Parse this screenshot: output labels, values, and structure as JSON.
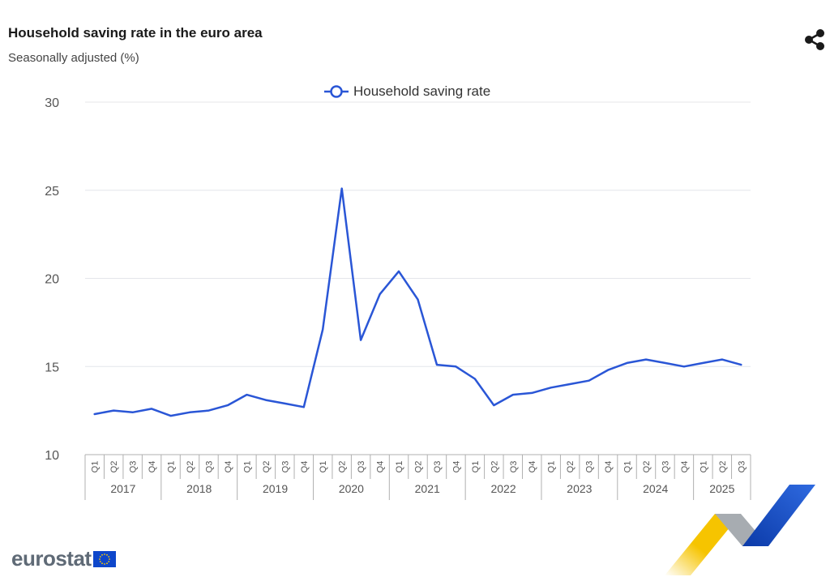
{
  "header": {
    "title": "Household saving rate in the euro area",
    "subtitle": "Seasonally adjusted (%)"
  },
  "toolbar": {
    "share_icon": "share-icon"
  },
  "legend": {
    "label": "Household saving rate",
    "marker_icon": "circle-marker-icon"
  },
  "brand": {
    "logo_text": "eurostat",
    "flag_icon": "eu-flag-icon"
  },
  "colors": {
    "series": "#2a56d6",
    "grid": "#e4e6ea",
    "axis": "#b0b0b0",
    "eu_blue": "#0e47cb",
    "eu_yellow": "#ffcc00",
    "ribbon_yellow": "#f6c400",
    "ribbon_grey": "#9ea3a8",
    "ribbon_blue": "#1a4fc4"
  },
  "chart_data": {
    "type": "line",
    "title": "Household saving rate in the euro area",
    "subtitle": "Seasonally adjusted (%)",
    "xlabel": "",
    "ylabel": "",
    "ylim": [
      10,
      30
    ],
    "yticks": [
      10,
      15,
      20,
      25,
      30
    ],
    "grid": true,
    "legend_position": "top-center",
    "quarter_labels": [
      "Q1",
      "Q2",
      "Q3",
      "Q4",
      "Q1",
      "Q2",
      "Q3",
      "Q4",
      "Q1",
      "Q2",
      "Q3",
      "Q4",
      "Q1",
      "Q2",
      "Q3",
      "Q4",
      "Q1",
      "Q2",
      "Q3",
      "Q4",
      "Q1",
      "Q2",
      "Q3",
      "Q4",
      "Q1",
      "Q2",
      "Q3",
      "Q4",
      "Q1",
      "Q2",
      "Q3",
      "Q4",
      "Q1",
      "Q2",
      "Q3"
    ],
    "years": [
      {
        "label": "2017",
        "quarters": 4
      },
      {
        "label": "2018",
        "quarters": 4
      },
      {
        "label": "2019",
        "quarters": 4
      },
      {
        "label": "2020",
        "quarters": 4
      },
      {
        "label": "2021",
        "quarters": 4
      },
      {
        "label": "2022",
        "quarters": 4
      },
      {
        "label": "2023",
        "quarters": 4
      },
      {
        "label": "2024",
        "quarters": 4
      },
      {
        "label": "2025",
        "quarters": 3
      }
    ],
    "series": [
      {
        "name": "Household saving rate",
        "values": [
          12.3,
          12.5,
          12.4,
          12.6,
          12.2,
          12.4,
          12.5,
          12.8,
          13.4,
          13.1,
          12.9,
          12.7,
          17.1,
          25.1,
          16.5,
          19.1,
          20.4,
          18.8,
          15.1,
          15.0,
          14.3,
          12.8,
          13.4,
          13.5,
          13.8,
          14.0,
          14.2,
          14.8,
          15.2,
          15.4,
          15.2,
          15.0,
          15.2,
          15.4,
          15.1
        ]
      }
    ]
  }
}
